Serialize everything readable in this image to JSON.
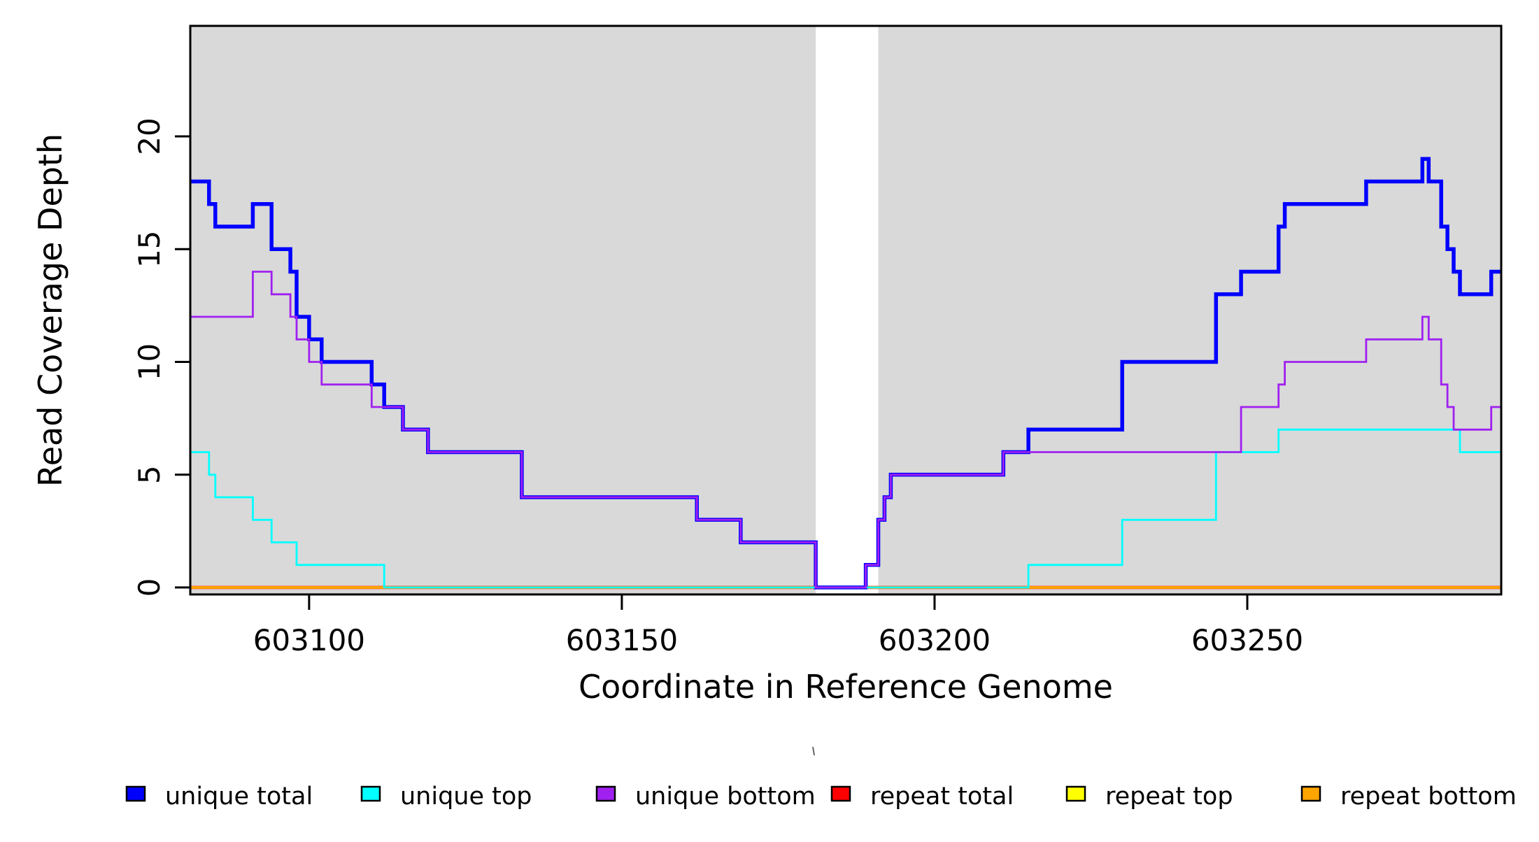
{
  "chart_data": {
    "type": "line",
    "subtype": "step-hv",
    "title": "",
    "xlabel": "Coordinate in Reference Genome",
    "ylabel": "Read Coverage Depth",
    "xlim": [
      603081,
      603290.6
    ],
    "ylim": [
      0,
      24.9
    ],
    "grid": false,
    "x_ticks": [
      {
        "value": 603100,
        "label": "603100"
      },
      {
        "value": 603150,
        "label": "603150"
      },
      {
        "value": 603200,
        "label": "603200"
      },
      {
        "value": 603250,
        "label": "603250"
      }
    ],
    "y_ticks": [
      {
        "value": 0,
        "label": "0"
      },
      {
        "value": 5,
        "label": "5"
      },
      {
        "value": 10,
        "label": "10"
      },
      {
        "value": 15,
        "label": "15"
      },
      {
        "value": 20,
        "label": "20"
      }
    ],
    "background_regions": [
      {
        "x0": 603081,
        "x1": 603181,
        "color": "#D9D9D9"
      },
      {
        "x0": 603191,
        "x1": 603290.6,
        "color": "#D9D9D9"
      }
    ],
    "gap_region": {
      "x0": 603181,
      "x1": 603191,
      "color": "#FFFFFF"
    },
    "series": [
      {
        "name": "repeat total",
        "color": "#FF0000",
        "line_width": 4.5,
        "steps": [
          [
            603081,
            0
          ]
        ]
      },
      {
        "name": "repeat top",
        "color": "#FFFF00",
        "line_width": 3.6,
        "steps": [
          [
            603081,
            0
          ]
        ]
      },
      {
        "name": "repeat bottom",
        "color": "#FFA500",
        "line_width": 3.2,
        "steps": [
          [
            603081,
            0
          ]
        ]
      },
      {
        "name": "unique total",
        "color": "#0000FF",
        "line_width": 5.5,
        "steps": [
          [
            603081,
            18
          ],
          [
            603084,
            17
          ],
          [
            603085,
            16
          ],
          [
            603091,
            17
          ],
          [
            603094,
            15
          ],
          [
            603097,
            14
          ],
          [
            603098,
            12
          ],
          [
            603100,
            11
          ],
          [
            603102,
            10
          ],
          [
            603110,
            9
          ],
          [
            603112,
            8
          ],
          [
            603115,
            7
          ],
          [
            603119,
            6
          ],
          [
            603134,
            4
          ],
          [
            603162,
            3
          ],
          [
            603169,
            2
          ],
          [
            603181,
            0
          ],
          [
            603189,
            1
          ],
          [
            603191,
            3
          ],
          [
            603192,
            4
          ],
          [
            603193,
            5
          ],
          [
            603211,
            6
          ],
          [
            603215,
            7
          ],
          [
            603230,
            10
          ],
          [
            603245,
            13
          ],
          [
            603249,
            14
          ],
          [
            603255,
            16
          ],
          [
            603256,
            17
          ],
          [
            603269,
            18
          ],
          [
            603278,
            19
          ],
          [
            603279,
            18
          ],
          [
            603281,
            16
          ],
          [
            603282,
            15
          ],
          [
            603283,
            14
          ],
          [
            603284,
            13
          ],
          [
            603289,
            14
          ]
        ]
      },
      {
        "name": "unique top",
        "color": "#00FFFF",
        "line_width": 2.8,
        "steps": [
          [
            603081,
            6
          ],
          [
            603084,
            5
          ],
          [
            603085,
            4
          ],
          [
            603091,
            3
          ],
          [
            603094,
            2
          ],
          [
            603098,
            1
          ],
          [
            603112,
            0
          ],
          [
            603215,
            1
          ],
          [
            603230,
            3
          ],
          [
            603245,
            6
          ],
          [
            603255,
            7
          ],
          [
            603284,
            6
          ]
        ]
      },
      {
        "name": "unique bottom",
        "color": "#A020F0",
        "line_width": 2.8,
        "steps": [
          [
            603081,
            12
          ],
          [
            603091,
            14
          ],
          [
            603094,
            13
          ],
          [
            603097,
            12
          ],
          [
            603098,
            11
          ],
          [
            603100,
            10
          ],
          [
            603102,
            9
          ],
          [
            603110,
            8
          ],
          [
            603115,
            7
          ],
          [
            603119,
            6
          ],
          [
            603134,
            4
          ],
          [
            603162,
            3
          ],
          [
            603169,
            2
          ],
          [
            603181,
            0
          ],
          [
            603189,
            1
          ],
          [
            603191,
            3
          ],
          [
            603192,
            4
          ],
          [
            603193,
            5
          ],
          [
            603211,
            6
          ],
          [
            603249,
            8
          ],
          [
            603255,
            9
          ],
          [
            603256,
            10
          ],
          [
            603269,
            11
          ],
          [
            603278,
            12
          ],
          [
            603279,
            11
          ],
          [
            603281,
            9
          ],
          [
            603282,
            8
          ],
          [
            603283,
            7
          ],
          [
            603289,
            8
          ]
        ]
      }
    ],
    "legend": {
      "position": "bottom",
      "entries": [
        {
          "label": "unique total",
          "color": "#0000FF"
        },
        {
          "label": "unique top",
          "color": "#00FFFF"
        },
        {
          "label": "unique bottom",
          "color": "#A020F0"
        },
        {
          "label": "repeat total",
          "color": "#FF0000"
        },
        {
          "label": "repeat top",
          "color": "#FFFF00"
        },
        {
          "label": "repeat bottom",
          "color": "#FFA500"
        }
      ]
    }
  },
  "colors": {
    "frame": "#000000",
    "region_fill": "#D9D9D9",
    "page_background": "#FFFFFF"
  }
}
